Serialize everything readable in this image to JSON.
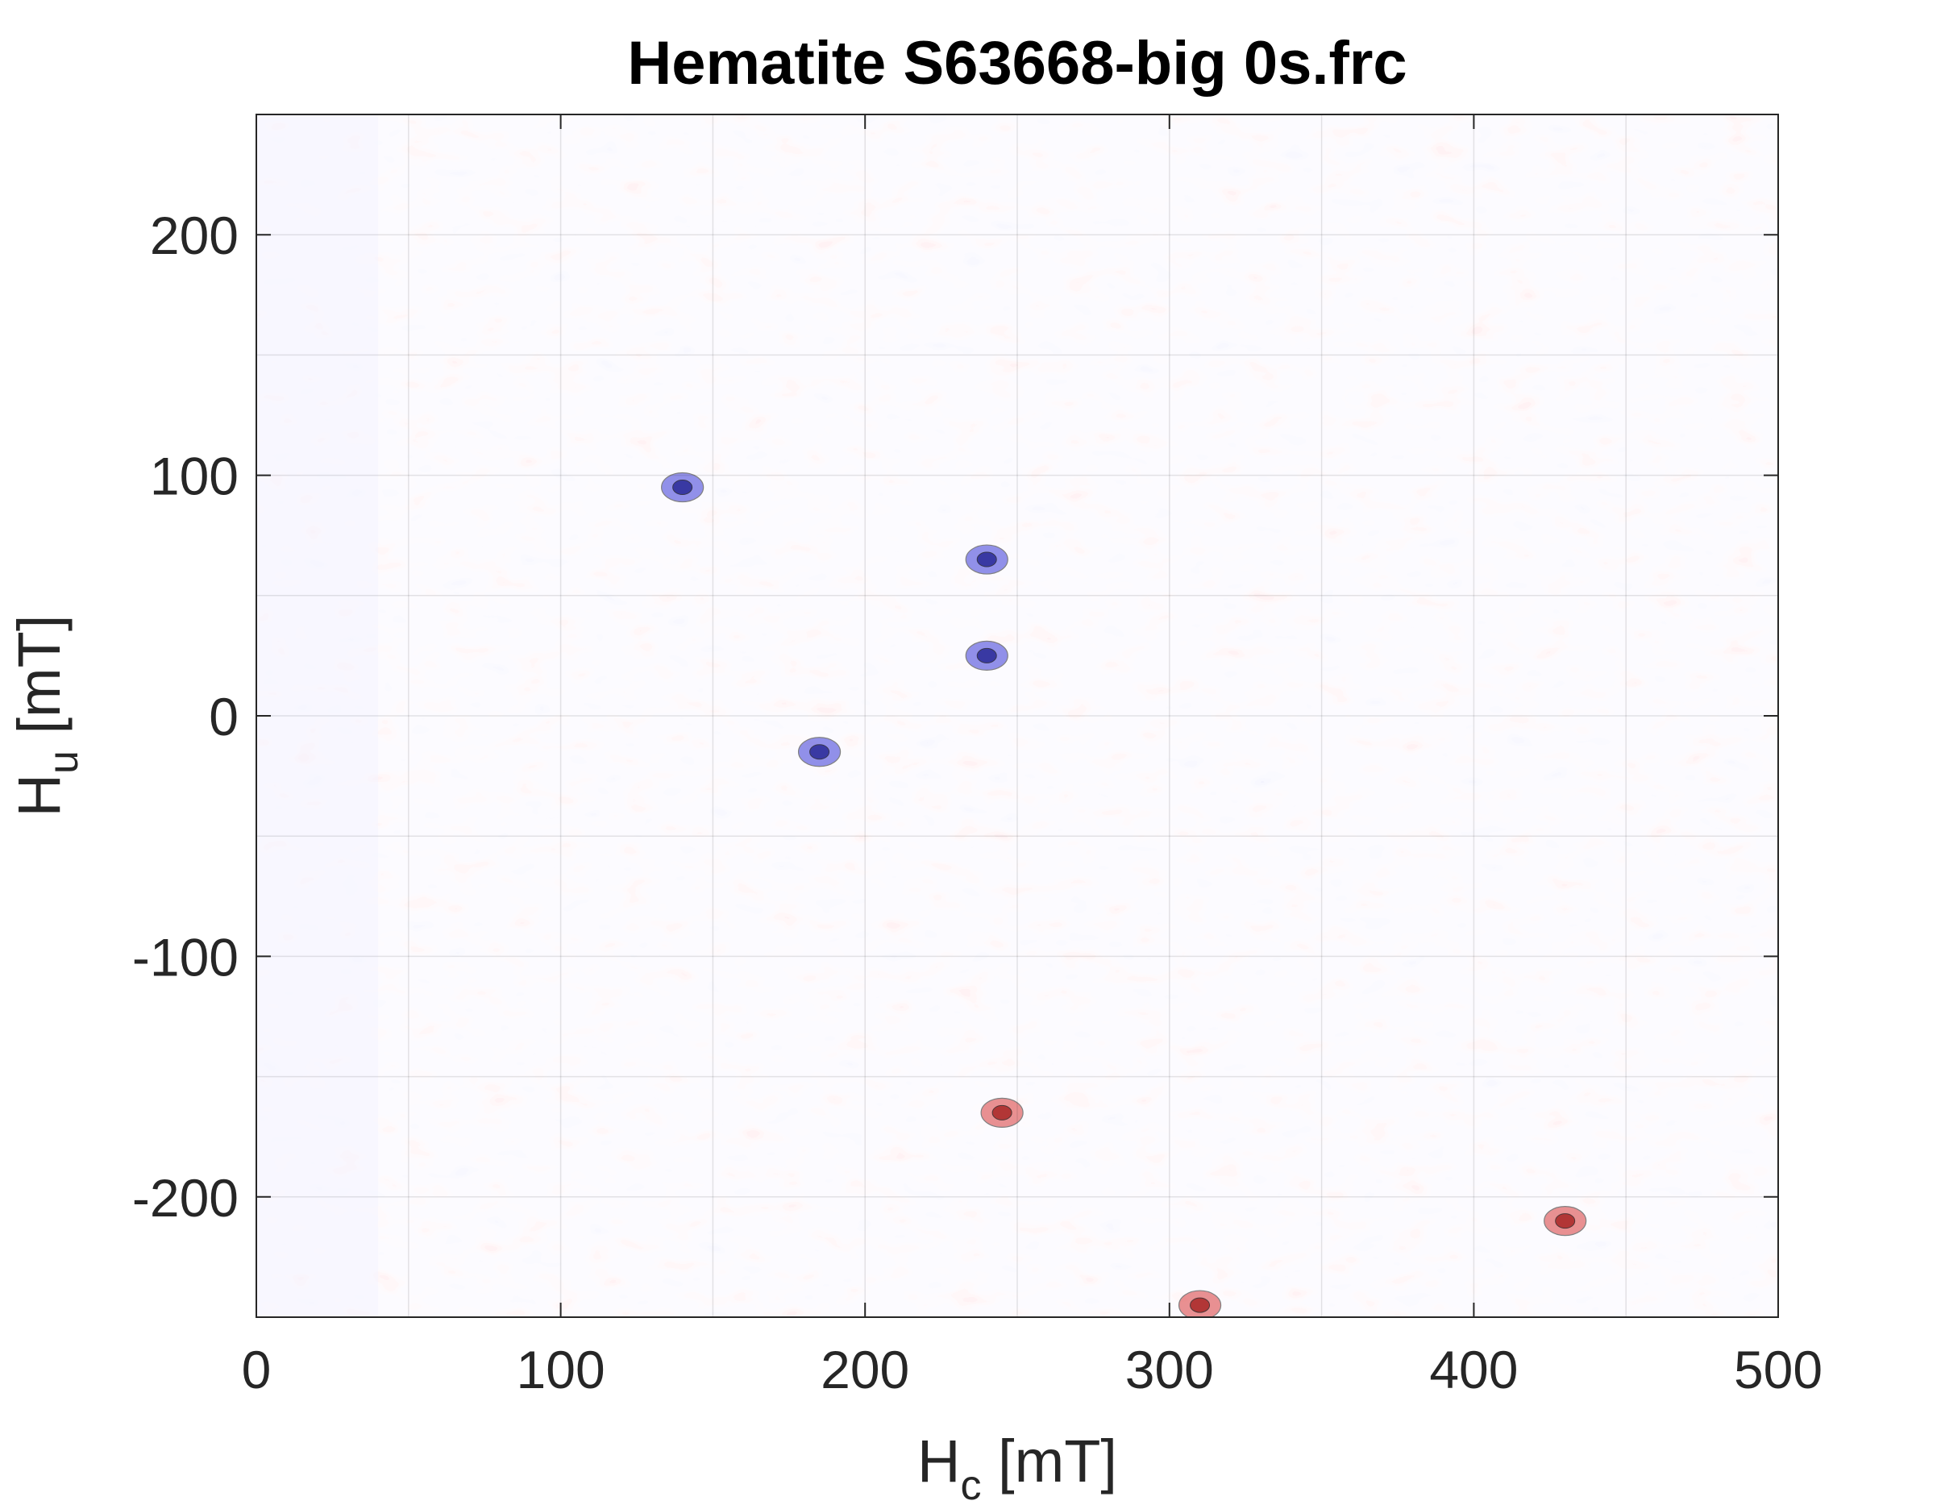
{
  "chart_data": {
    "type": "heatmap",
    "title": "Hematite S63668-big 0s.frc",
    "xlabel": {
      "main": "H",
      "sub": "c",
      "unit": " [mT]"
    },
    "ylabel": {
      "main": "H",
      "sub": "u",
      "unit": " [mT]"
    },
    "xlim": [
      0,
      500
    ],
    "ylim": [
      -250,
      250
    ],
    "xticks": [
      0,
      100,
      200,
      300,
      400,
      500
    ],
    "yticks": [
      -200,
      -100,
      0,
      100,
      200
    ],
    "xtick_labels": [
      "0",
      "100",
      "200",
      "300",
      "400",
      "500"
    ],
    "ytick_labels": [
      "-200",
      "-100",
      "0",
      "100",
      "200"
    ],
    "grid": true,
    "colormap": {
      "negative": "#3a3ad8",
      "neutral": "#f3f3ff",
      "positive": "#d83a3a"
    },
    "contour_line_color": "#1a1a1a",
    "description_style": "filled noisy FORC contour map, no legend",
    "notable_features": [
      {
        "hc": 140,
        "hu": 95,
        "sign": "negative"
      },
      {
        "hc": 240,
        "hu": 65,
        "sign": "negative"
      },
      {
        "hc": 185,
        "hu": -15,
        "sign": "negative"
      },
      {
        "hc": 240,
        "hu": 25,
        "sign": "negative"
      },
      {
        "hc": 310,
        "hu": -245,
        "sign": "positive"
      },
      {
        "hc": 430,
        "hu": -210,
        "sign": "positive"
      },
      {
        "hc": 245,
        "hu": -165,
        "sign": "positive"
      }
    ]
  }
}
